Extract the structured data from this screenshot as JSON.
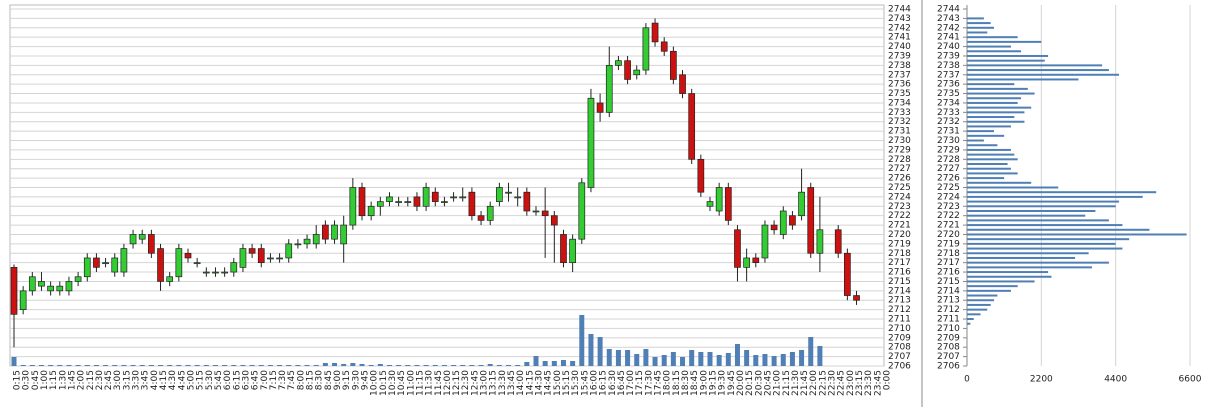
{
  "chart_data": [
    {
      "type": "candlestick",
      "categories": [
        "0:15",
        "0:30",
        "0:45",
        "1:00",
        "1:15",
        "1:30",
        "1:45",
        "2:00",
        "2:15",
        "2:30",
        "2:45",
        "3:00",
        "3:15",
        "3:30",
        "3:45",
        "4:00",
        "4:15",
        "4:30",
        "4:45",
        "5:00",
        "5:15",
        "5:30",
        "5:45",
        "6:00",
        "6:15",
        "6:30",
        "6:45",
        "7:00",
        "7:15",
        "7:30",
        "7:45",
        "8:00",
        "8:15",
        "8:30",
        "8:45",
        "9:00",
        "9:15",
        "9:30",
        "9:45",
        "10:00",
        "10:15",
        "10:30",
        "10:45",
        "11:00",
        "11:15",
        "11:30",
        "11:45",
        "12:00",
        "12:15",
        "12:30",
        "12:45",
        "13:00",
        "13:15",
        "13:30",
        "13:45",
        "14:00",
        "14:15",
        "14:30",
        "14:45",
        "15:00",
        "15:15",
        "15:30",
        "15:45",
        "16:00",
        "16:15",
        "16:30",
        "16:45",
        "17:00",
        "17:15",
        "17:30",
        "17:45",
        "18:00",
        "18:15",
        "18:30",
        "18:45",
        "19:00",
        "19:15",
        "19:30",
        "19:45",
        "20:00",
        "20:15",
        "20:30",
        "20:45",
        "21:00",
        "21:15",
        "21:30",
        "21:45",
        "22:00",
        "22:15",
        "22:30",
        "22:45",
        "23:00",
        "23:15",
        "23:30",
        "23:45",
        "0:00"
      ],
      "open": [
        2716.5,
        2712,
        2714,
        2714.5,
        2714,
        2714,
        2714,
        2715,
        2715.5,
        2717.5,
        2717,
        2716,
        2716,
        2719,
        2719.5,
        2720,
        2718.5,
        2715,
        2715.5,
        2718,
        2717,
        2716,
        2716,
        2716,
        2716,
        2716.5,
        2718.5,
        2718.5,
        2717.5,
        2717.5,
        2717.5,
        2719,
        2719,
        2719,
        2721,
        2719.5,
        2719,
        2721,
        2725,
        2722,
        2723,
        2723.5,
        2723.5,
        2723.5,
        2724,
        2723,
        2724.5,
        2723.5,
        2724,
        2724,
        2724.5,
        2722,
        2721.5,
        2723.5,
        2724.5,
        2724,
        2724.5,
        2722.5,
        2722.5,
        2722,
        2720,
        2717,
        2719.5,
        2725,
        2734,
        2733,
        2738,
        2738.5,
        2737,
        2737.5,
        2742.5,
        2740.5,
        2739.5,
        2737,
        2735,
        2728,
        2723,
        2722.5,
        2725,
        2720.5,
        2716.5,
        2717.5,
        2717.5,
        2721,
        2720,
        2722,
        2722,
        2725,
        2718,
        null,
        2720.5,
        2718,
        2713.5,
        null,
        null,
        null
      ],
      "high": [
        2716.8,
        2714.5,
        2716,
        2716,
        2715,
        2715,
        2715.5,
        2716,
        2718,
        2718,
        2717.5,
        2718,
        2719,
        2720.5,
        2720.5,
        2720.5,
        2719,
        2716,
        2719,
        2718.5,
        2717.5,
        2716.5,
        2716.5,
        2716.5,
        2717.5,
        2719,
        2719,
        2719,
        2718,
        2718,
        2719.5,
        2719.5,
        2720,
        2721,
        2721.5,
        2721.5,
        2722,
        2726,
        2725.5,
        2723.5,
        2724,
        2724.5,
        2724,
        2724,
        2724.5,
        2725.5,
        2725,
        2724,
        2724.5,
        2725,
        2725,
        2722.5,
        2723.5,
        2725.5,
        2725.5,
        2725,
        2725,
        2723,
        2725,
        2722.5,
        2720.5,
        2720,
        2726,
        2735.5,
        2735,
        2740,
        2739,
        2739,
        2738,
        2742.5,
        2743,
        2741,
        2740,
        2737.5,
        2735.5,
        2728.5,
        2724,
        2725.5,
        2725.5,
        2721,
        2718.5,
        2718,
        2721.5,
        2721.5,
        2723,
        2722.5,
        2727,
        2725.5,
        2724,
        null,
        2721,
        2718.5,
        2714,
        null,
        null,
        null
      ],
      "low": [
        2708,
        2711.5,
        2713.5,
        2714,
        2713.5,
        2713.5,
        2713.5,
        2714.5,
        2715,
        2716,
        2716.5,
        2715.5,
        2715.5,
        2718.5,
        2719,
        2717.5,
        2714,
        2714.5,
        2715,
        2717,
        2716.5,
        2715.5,
        2715.5,
        2715.5,
        2715.5,
        2716,
        2717.5,
        2716.5,
        2717,
        2717,
        2717,
        2718.5,
        2718.5,
        2718.5,
        2719,
        2719,
        2717,
        2720.5,
        2721.5,
        2721.5,
        2722,
        2723,
        2723,
        2723,
        2722.5,
        2722.5,
        2723,
        2723,
        2723.5,
        2723.5,
        2721.5,
        2721,
        2721,
        2723,
        2723.5,
        2723,
        2722,
        2722,
        2717.5,
        2717,
        2716.5,
        2716,
        2719,
        2724.5,
        2732,
        2732.5,
        2737.5,
        2736,
        2736.5,
        2737,
        2740,
        2739,
        2736,
        2734.5,
        2727.5,
        2724,
        2722.5,
        2722,
        2721,
        2715,
        2715,
        2716.5,
        2717,
        2720,
        2719.5,
        2720.5,
        2721.5,
        2717.5,
        2716,
        null,
        2717.5,
        2713,
        2712.5,
        null,
        null,
        null
      ],
      "close": [
        2711.5,
        2714,
        2715.5,
        2715,
        2714.5,
        2714.5,
        2715,
        2715.5,
        2717.5,
        2716.5,
        2717,
        2717.5,
        2718.5,
        2720,
        2720,
        2718,
        2715,
        2715.5,
        2718.5,
        2717.5,
        2717,
        2716,
        2716,
        2716,
        2717,
        2718.5,
        2718,
        2717,
        2717.5,
        2717.5,
        2719,
        2719,
        2719.5,
        2720,
        2719.5,
        2721,
        2721,
        2725,
        2722,
        2723,
        2723.5,
        2724,
        2723.5,
        2723.5,
        2723,
        2725,
        2723.5,
        2723.5,
        2724,
        2724,
        2722,
        2721.5,
        2723,
        2725,
        2724.5,
        2724,
        2722.5,
        2722.5,
        2722,
        2721,
        2717,
        2719.5,
        2725.5,
        2734.5,
        2733,
        2738,
        2738.5,
        2736.5,
        2737.5,
        2742,
        2740.5,
        2739.5,
        2736.5,
        2735,
        2728,
        2724.5,
        2723.5,
        2725,
        2721.5,
        2716.5,
        2717.5,
        2717,
        2721,
        2720.5,
        2722.5,
        2721,
        2724.5,
        2718,
        2720.5,
        null,
        2718,
        2713.5,
        2713,
        null,
        null,
        null
      ],
      "volume": [
        9,
        1,
        1,
        1,
        1,
        1,
        1,
        1,
        1,
        1,
        1,
        1,
        1,
        1,
        1,
        1,
        1,
        1,
        1,
        1,
        1,
        1,
        1,
        1,
        1,
        1,
        1,
        1,
        1,
        1,
        1,
        1,
        1,
        1,
        3,
        3,
        2,
        3,
        2,
        1,
        2,
        1,
        1,
        1,
        1,
        1,
        1,
        1,
        1,
        1,
        1,
        1,
        2,
        1,
        1,
        1,
        4,
        10,
        5,
        5,
        6,
        5,
        51,
        32,
        29,
        17,
        16,
        16,
        12,
        17,
        9,
        11,
        14,
        9,
        16,
        14,
        14,
        11,
        13,
        22,
        16,
        11,
        12,
        10,
        12,
        14,
        16,
        29,
        20,
        null,
        0,
        0,
        0,
        null,
        null,
        null
      ],
      "up_color": "#33cc33",
      "down_color": "#cc1111",
      "volume_color": "#4f7fb5",
      "ylim": [
        2706,
        2744
      ],
      "yticks": [
        2706,
        2707,
        2708,
        2709,
        2710,
        2711,
        2712,
        2713,
        2714,
        2715,
        2716,
        2717,
        2718,
        2719,
        2720,
        2721,
        2722,
        2723,
        2724,
        2725,
        2726,
        2727,
        2728,
        2729,
        2730,
        2731,
        2732,
        2733,
        2734,
        2735,
        2736,
        2737,
        2738,
        2739,
        2740,
        2741,
        2742,
        2743,
        2744
      ],
      "grid": true
    },
    {
      "type": "bar",
      "orientation": "horizontal",
      "levels": [
        2743,
        2742.5,
        2742,
        2741.5,
        2741,
        2740.5,
        2740,
        2739.5,
        2739,
        2738.5,
        2738,
        2737.5,
        2737,
        2736.5,
        2736,
        2735.5,
        2735,
        2734.5,
        2734,
        2733.5,
        2733,
        2732.5,
        2732,
        2731.5,
        2731,
        2730.5,
        2730,
        2729.5,
        2729,
        2728.5,
        2728,
        2727.5,
        2727,
        2726.5,
        2726,
        2725.5,
        2725,
        2724.5,
        2724,
        2723.5,
        2723,
        2722.5,
        2722,
        2721.5,
        2721,
        2720.5,
        2720,
        2719.5,
        2719,
        2718.5,
        2718,
        2717.5,
        2717,
        2716.5,
        2716,
        2715.5,
        2715,
        2714.5,
        2714,
        2713.5,
        2713,
        2712.5,
        2712,
        2711.5,
        2711,
        2710.5
      ],
      "values": [
        500,
        700,
        800,
        600,
        1500,
        2200,
        1300,
        1600,
        2400,
        2300,
        4000,
        4200,
        4500,
        3300,
        1400,
        1800,
        2000,
        1600,
        1500,
        1900,
        1700,
        1400,
        1700,
        1300,
        800,
        1100,
        500,
        900,
        1300,
        1400,
        1500,
        1200,
        1300,
        1500,
        1100,
        1900,
        2700,
        5600,
        5200,
        4500,
        4400,
        3800,
        3500,
        4200,
        4600,
        5400,
        6500,
        4800,
        4400,
        4600,
        3600,
        3200,
        4200,
        3700,
        2400,
        2500,
        2000,
        1500,
        1300,
        900,
        800,
        700,
        600,
        400,
        200,
        100
      ],
      "color": "#4f7fb5",
      "xlim": [
        0,
        6600
      ],
      "xticks": [
        0,
        2200,
        4400,
        6600
      ],
      "ylim": [
        2706,
        2744
      ],
      "yticks": [
        2706,
        2707,
        2708,
        2709,
        2710,
        2711,
        2712,
        2713,
        2714,
        2715,
        2716,
        2717,
        2718,
        2719,
        2720,
        2721,
        2722,
        2723,
        2724,
        2725,
        2726,
        2727,
        2728,
        2729,
        2730,
        2731,
        2732,
        2733,
        2734,
        2735,
        2736,
        2737,
        2738,
        2739,
        2740,
        2741,
        2742,
        2743,
        2744
      ],
      "grid": true
    }
  ]
}
